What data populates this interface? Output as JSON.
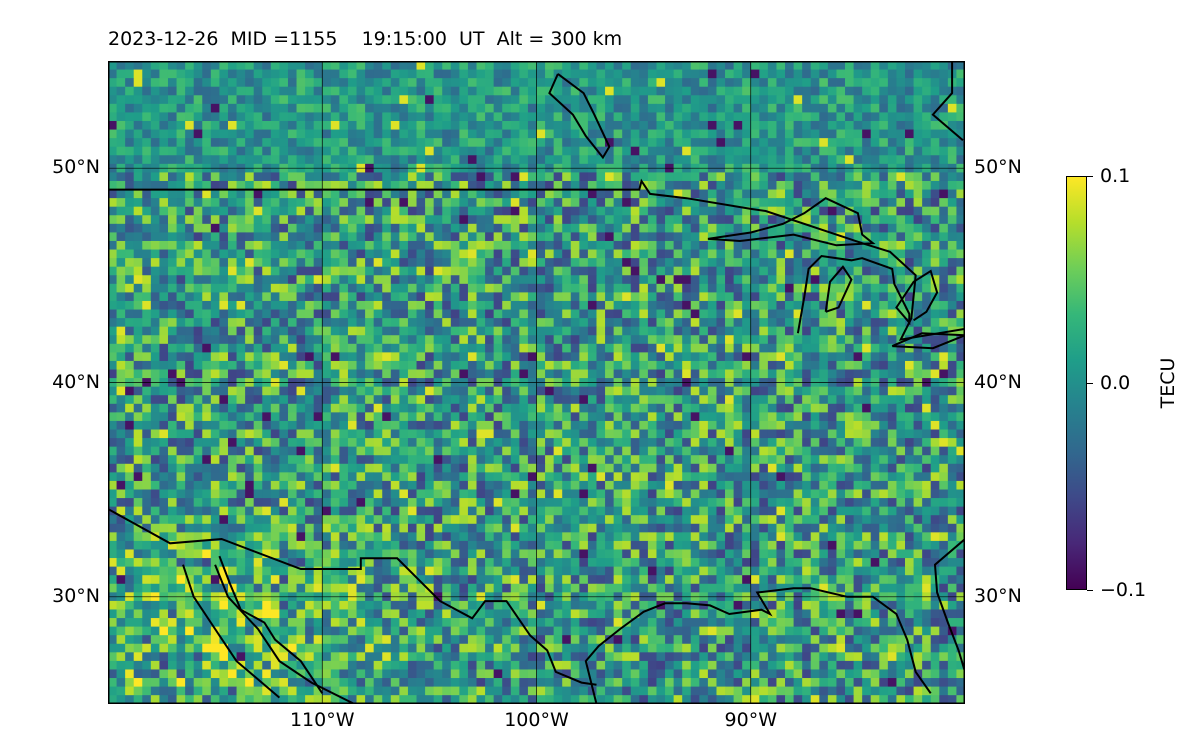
{
  "title": "2023-12-26  MID =1155    19:15:00  UT  Alt = 300 km",
  "map": {
    "projection": "PlateCarree",
    "lon_range": [
      -120,
      -80
    ],
    "lat_range": [
      25,
      55
    ],
    "lat_ticks": [
      {
        "value": 50,
        "label": "50°N"
      },
      {
        "value": 40,
        "label": "40°N"
      },
      {
        "value": 30,
        "label": "30°N"
      }
    ],
    "lon_ticks": [
      {
        "value": -110,
        "label": "110°W"
      },
      {
        "value": -100,
        "label": "100°W"
      },
      {
        "value": -90,
        "label": "90°W"
      }
    ],
    "gridlines": true,
    "field": "detrended TEC perturbation",
    "coastlines_color": "#000000"
  },
  "colorbar": {
    "label": "TECU",
    "colormap": "viridis",
    "vmin": -0.1,
    "vmax": 0.1,
    "ticks": [
      {
        "value": 0.1,
        "label": "0.1"
      },
      {
        "value": 0.0,
        "label": "0.0"
      },
      {
        "value": -0.1,
        "label": "−0.1"
      }
    ]
  },
  "colors": {
    "viridis": [
      "#440154",
      "#482878",
      "#3e4989",
      "#31688e",
      "#26828e",
      "#1f9e89",
      "#35b779",
      "#6ece58",
      "#b5de2b",
      "#fde725"
    ]
  }
}
